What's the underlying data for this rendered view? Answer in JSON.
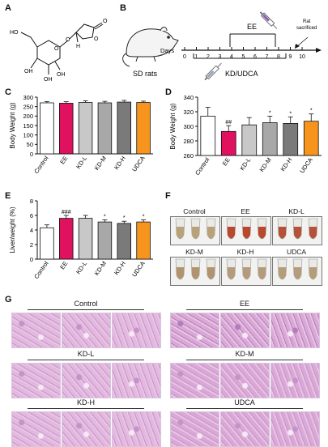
{
  "figure": {
    "panels": {
      "A": "A",
      "B": "B",
      "C": "C",
      "D": "D",
      "E": "E",
      "F": "F",
      "G": "G"
    },
    "structure": {
      "labels": [
        "HO",
        "OH",
        "OH",
        "OH",
        "O",
        "O",
        "O",
        "H",
        "O"
      ]
    },
    "timeline": {
      "days_label": "Days",
      "days": [
        "0",
        "1",
        "2",
        "3",
        "4",
        "5",
        "6",
        "7",
        "8",
        "9",
        "10"
      ],
      "ee_label": "EE",
      "kd_label": "KD/UDCA",
      "sacrificed_label": "Rat\nsacrificed",
      "sd_label": "SD rats"
    },
    "tubes": {
      "groups": [
        {
          "label": "Control",
          "liquid": "#b9a27a"
        },
        {
          "label": "EE",
          "liquid": "#b8482e"
        },
        {
          "label": "KD-L",
          "liquid": "#b3533a"
        },
        {
          "label": "KD-M",
          "liquid": "#b09470"
        },
        {
          "label": "KD-H",
          "liquid": "#b59b7a"
        },
        {
          "label": "UDCA",
          "liquid": "#b59c7a"
        }
      ]
    },
    "histology": {
      "groups": [
        "Control",
        "EE",
        "KD-L",
        "KD-M",
        "KD-H",
        "UDCA"
      ]
    }
  },
  "chart_data": [
    {
      "id": "C",
      "type": "bar",
      "categories": [
        "Control",
        "EE",
        "KD-L",
        "KD-M",
        "KD-H",
        "UDCA"
      ],
      "values": [
        270,
        268,
        272,
        270,
        274,
        272
      ],
      "errors": [
        7,
        8,
        9,
        8,
        9,
        7
      ],
      "colors": [
        "#ffffff",
        "#e0115f",
        "#c8c8c8",
        "#a8a8a8",
        "#7a7a7a",
        "#f7941d"
      ],
      "ylabel": "Body Weight (g)",
      "ylim": [
        0,
        300
      ],
      "yticks": [
        "0",
        "50",
        "100",
        "150",
        "200",
        "250",
        "300"
      ],
      "annotations": [
        "",
        "",
        "",
        "",
        "",
        ""
      ]
    },
    {
      "id": "D",
      "type": "bar",
      "categories": [
        "Control",
        "EE",
        "KD-L",
        "KD-M",
        "KD-H",
        "UDCA"
      ],
      "values": [
        314,
        293,
        302,
        305,
        304,
        307
      ],
      "errors": [
        12,
        8,
        10,
        9,
        9,
        10
      ],
      "colors": [
        "#ffffff",
        "#e0115f",
        "#c8c8c8",
        "#a8a8a8",
        "#7a7a7a",
        "#f7941d"
      ],
      "ylabel": "Body Weight (g)",
      "ylim": [
        260,
        340
      ],
      "yticks": [
        "260",
        "280",
        "300",
        "320",
        "340"
      ],
      "annotations": [
        "",
        "##",
        "",
        "*",
        "*",
        "*"
      ]
    },
    {
      "id": "E",
      "type": "bar",
      "categories": [
        "Control",
        "EE",
        "KD-L",
        "KD-M",
        "KD-H",
        "UDCA"
      ],
      "values": [
        4.3,
        5.6,
        5.6,
        5.1,
        4.9,
        5.1
      ],
      "errors": [
        0.4,
        0.4,
        0.4,
        0.3,
        0.3,
        0.3
      ],
      "colors": [
        "#ffffff",
        "#e0115f",
        "#c8c8c8",
        "#a8a8a8",
        "#7a7a7a",
        "#f7941d"
      ],
      "ylabel": "Liver/weight (%)",
      "ylim": [
        0,
        8
      ],
      "yticks": [
        "0",
        "2",
        "4",
        "6",
        "8"
      ],
      "annotations": [
        "",
        "###",
        "",
        "*",
        "*",
        "*"
      ]
    }
  ]
}
